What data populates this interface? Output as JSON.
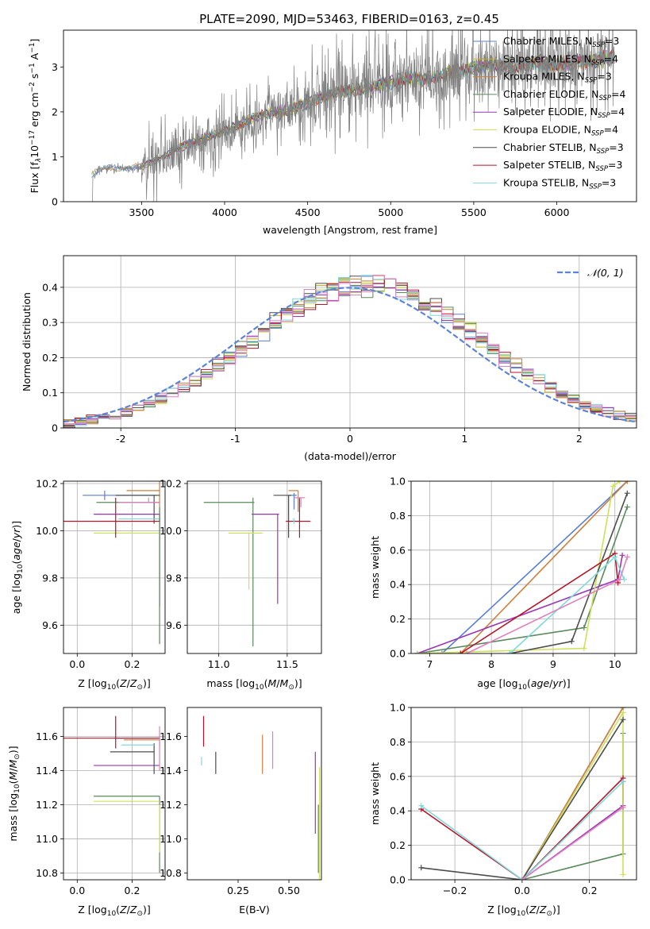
{
  "figure": {
    "title": "PLATE=2090, MJD=53463, FIBERID=0163, z=0.45"
  },
  "colors": {
    "Chabrier MILES": "#5b7fd6",
    "Salpeter MILES": "#c4b12e",
    "Kroupa MILES": "#cf7f3a",
    "Chabrier ELODIE": "#5a8a5a",
    "Salpeter ELODIE": "#9b36b5",
    "Kroupa ELODIE": "#cfe05a",
    "Chabrier STELIB": "#4d4d4d",
    "Salpeter STELIB": "#b5162a",
    "Kroupa STELIB": "#7fd8dc",
    "Kroupa ELODIE extra": "#e07fbf"
  },
  "chart_data": [
    {
      "id": "spectrum",
      "type": "line",
      "title": "PLATE=2090, MJD=53463, FIBERID=0163, z=0.45",
      "xlabel": "wavelength [Angstrom, rest frame]",
      "ylabel": "Flux [f$_\\lambda$10$^{-17}$ erg cm$^{-2}$ s$^{-1}$ A$^{-1}$]",
      "ylabel_parts": [
        "Flux [f",
        "λ",
        "10",
        "−17",
        " erg cm",
        "−2",
        " s",
        "−1",
        " A",
        "−1",
        "]"
      ],
      "xlim": [
        3030,
        6480
      ],
      "ylim": [
        0,
        3.82
      ],
      "x_ticks": [
        3500,
        4000,
        4500,
        5000,
        5500,
        6000
      ],
      "y_ticks": [
        0,
        1,
        2,
        3
      ],
      "grid": false,
      "legend_position": "top-right",
      "legend": [
        {
          "label": "Chabrier MILES, N",
          "sub": "SSP",
          "suffix": "=3",
          "color": "#5b7fd6"
        },
        {
          "label": "Salpeter MILES, N",
          "sub": "SSP",
          "suffix": "=4",
          "color": "#c4b12e"
        },
        {
          "label": "Kroupa MILES, N",
          "sub": "SSP",
          "suffix": "=3",
          "color": "#cf7f3a"
        },
        {
          "label": "Chabrier ELODIE, N",
          "sub": "SSP",
          "suffix": "=4",
          "color": "#5a8a5a"
        },
        {
          "label": "Salpeter ELODIE, N",
          "sub": "SSP",
          "suffix": "=4",
          "color": "#9b36b5"
        },
        {
          "label": "Kroupa ELODIE, N",
          "sub": "SSP",
          "suffix": "=4",
          "color": "#cfe05a"
        },
        {
          "label": "Chabrier STELIB, N",
          "sub": "SSP",
          "suffix": "=3",
          "color": "#4d4d4d"
        },
        {
          "label": "Salpeter STELIB, N",
          "sub": "SSP",
          "suffix": "=3",
          "color": "#b5162a"
        },
        {
          "label": "Kroupa STELIB, N",
          "sub": "SSP",
          "suffix": "=3",
          "color": "#7fd8dc"
        }
      ],
      "data_color": "#808080",
      "continuum": {
        "x": [
          3200,
          3300,
          3400,
          3500,
          3600,
          3700,
          3800,
          3900,
          4000,
          4100,
          4200,
          4300,
          4400,
          4500,
          4600,
          4700,
          4800,
          4900,
          5000,
          5100,
          5200,
          5300,
          5400,
          5500,
          5600,
          5700,
          5800,
          5900,
          6000,
          6100,
          6200,
          6300
        ],
        "y": [
          0.62,
          0.75,
          0.75,
          0.78,
          0.95,
          1.15,
          1.3,
          1.45,
          1.55,
          1.75,
          1.9,
          1.98,
          2.05,
          2.2,
          2.35,
          2.45,
          2.5,
          2.55,
          2.65,
          2.75,
          2.72,
          2.8,
          2.9,
          2.98,
          3.05,
          3.0,
          3.05,
          3.1,
          3.05,
          3.1,
          3.15,
          3.2
        ]
      }
    },
    {
      "id": "residuals",
      "type": "bar",
      "xlabel": "(data-model)/error",
      "ylabel": "Normed distribution",
      "xlim": [
        -2.5,
        2.5
      ],
      "ylim": [
        0,
        0.49
      ],
      "x_ticks": [
        -2,
        -1,
        0,
        1,
        2
      ],
      "y_ticks": [
        0.0,
        0.1,
        0.2,
        0.3,
        0.4
      ],
      "grid": true,
      "legend_position": "top-right",
      "legend": [
        {
          "label": "𝒩(0, 1)",
          "color": "#5b84d6",
          "style": "dashed"
        }
      ],
      "bin_width": 0.1
    },
    {
      "id": "age-vs-Z",
      "type": "scatter",
      "xlabel": "Z [log$_{10}$($Z/Z_\\odot$)]",
      "ylabel": "age  [log$_{10}$($age/yr$)]",
      "xlim": [
        -0.05,
        0.32
      ],
      "ylim": [
        9.48,
        10.21
      ],
      "x_ticks": [
        0.0,
        0.2
      ],
      "y_ticks": [
        9.6,
        9.8,
        10.0,
        10.2
      ],
      "grid": true,
      "points": [
        {
          "x": 0.1,
          "y": 10.15,
          "xerr": [
            0.08,
            0.19
          ],
          "yerr": [
            0.02,
            0.02
          ],
          "color": "#5b7fd6"
        },
        {
          "x": 0.3,
          "y": 10.17,
          "xerr": [
            0.12,
            0.0
          ],
          "yerr": [
            0.14,
            0.04
          ],
          "color": "#cf7f3a"
        },
        {
          "x": 0.2,
          "y": 10.12,
          "xerr": [
            0.13,
            0.1
          ],
          "yerr": [
            0.0,
            0.0
          ],
          "color": "#5a8a5a"
        },
        {
          "x": 0.3,
          "y": 10.07,
          "xerr": [
            0.24,
            0.0
          ],
          "yerr": [
            0.39,
            0.0
          ],
          "color": "#9b36b5"
        },
        {
          "x": 0.3,
          "y": 9.99,
          "xerr": [
            0.24,
            0.0
          ],
          "yerr": [
            0.22,
            0.0
          ],
          "color": "#cfe05a"
        },
        {
          "x": 0.28,
          "y": 10.15,
          "xerr": [
            0.14,
            0.02
          ],
          "yerr": [
            0.12,
            0.0
          ],
          "color": "#4d4d4d"
        },
        {
          "x": 0.14,
          "y": 10.04,
          "xerr": [
            0.19,
            0.16
          ],
          "yerr": [
            0.07,
            0.1
          ],
          "color": "#b5162a"
        },
        {
          "x": 0.29,
          "y": 10.05,
          "xerr": [
            0.14,
            0.01
          ],
          "yerr": [
            0.0,
            0.0
          ],
          "color": "#7fd8dc"
        },
        {
          "x": 0.26,
          "y": 10.12,
          "xerr": [
            0.11,
            0.04
          ],
          "yerr": [
            0.0,
            0.02
          ],
          "color": "#e07fbf"
        },
        {
          "x": 0.3,
          "y": 10.1,
          "xerr": [
            0.0,
            0.0
          ],
          "yerr": [
            0.58,
            0.0
          ],
          "color": "#5a8a5a"
        }
      ]
    },
    {
      "id": "age-vs-mass",
      "type": "scatter",
      "xlabel": "mass [log$_{10}$($M/M_\\odot$)]",
      "xlim": [
        10.77,
        11.75
      ],
      "ylim": [
        9.48,
        10.21
      ],
      "x_ticks": [
        11.0,
        11.5
      ],
      "y_ticks": [
        9.6,
        9.8,
        10.0,
        10.2
      ],
      "grid": true,
      "points": [
        {
          "x": 11.55,
          "y": 10.15,
          "xerr": [
            0.04,
            0.02
          ],
          "yerr": [
            0.06,
            0.01
          ],
          "color": "#5b7fd6"
        },
        {
          "x": 11.58,
          "y": 10.17,
          "xerr": [
            0.07,
            0.0
          ],
          "yerr": [
            0.09,
            0.0
          ],
          "color": "#cf7f3a"
        },
        {
          "x": 11.25,
          "y": 10.12,
          "xerr": [
            0.36,
            0.01
          ],
          "yerr": [
            0.61,
            0.02
          ],
          "color": "#5a8a5a"
        },
        {
          "x": 11.43,
          "y": 10.07,
          "xerr": [
            0.19,
            0.01
          ],
          "yerr": [
            0.38,
            0.0
          ],
          "color": "#9b36b5"
        },
        {
          "x": 11.22,
          "y": 9.99,
          "xerr": [
            0.15,
            0.1
          ],
          "yerr": [
            0.24,
            0.0
          ],
          "color": "#cfe05a"
        },
        {
          "x": 11.51,
          "y": 10.15,
          "xerr": [
            0.11,
            0.02
          ],
          "yerr": [
            0.18,
            0.0
          ],
          "color": "#4d4d4d"
        },
        {
          "x": 11.59,
          "y": 10.04,
          "xerr": [
            0.1,
            0.08
          ],
          "yerr": [
            0.07,
            0.1
          ],
          "color": "#b5162a"
        },
        {
          "x": 11.55,
          "y": 10.05,
          "xerr": [
            0.01,
            0.0
          ],
          "yerr": [
            0.02,
            0.0
          ],
          "color": "#7fd8dc"
        },
        {
          "x": 11.6,
          "y": 10.14,
          "xerr": [
            0.05,
            0.03
          ],
          "yerr": [
            0.04,
            0.0
          ],
          "color": "#e07fbf"
        }
      ]
    },
    {
      "id": "mass-weight-vs-age",
      "type": "line",
      "xlabel": "age  [log$_{10}$($age/yr$)]",
      "ylabel": "mass weight",
      "xlim": [
        6.7,
        10.35
      ],
      "ylim": [
        0,
        1.0
      ],
      "x_ticks": [
        7,
        8,
        9,
        10
      ],
      "y_ticks": [
        0.0,
        0.2,
        0.4,
        0.6,
        0.8,
        1.0
      ],
      "grid": true,
      "series": [
        {
          "color": "#5b7fd6",
          "x": [
            7.2,
            10.2
          ],
          "y": [
            0.0,
            1.0
          ]
        },
        {
          "color": "#cf7f3a",
          "x": [
            7.5,
            10.2
          ],
          "y": [
            0.0,
            1.0
          ]
        },
        {
          "color": "#5a8a5a",
          "x": [
            6.8,
            9.5,
            10.2
          ],
          "y": [
            0.0,
            0.15,
            0.85
          ]
        },
        {
          "color": "#9b36b5",
          "x": [
            6.8,
            10.05,
            10.12
          ],
          "y": [
            0.0,
            0.43,
            0.57
          ]
        },
        {
          "color": "#cfe05a",
          "x": [
            6.8,
            9.5,
            9.97,
            10.08
          ],
          "y": [
            0.0,
            0.03,
            0.97,
            1.0
          ]
        },
        {
          "color": "#4d4d4d",
          "x": [
            8.3,
            9.3,
            10.2
          ],
          "y": [
            0.0,
            0.07,
            0.93
          ]
        },
        {
          "color": "#b5162a",
          "x": [
            7.5,
            10.0,
            10.05
          ],
          "y": [
            0.0,
            0.58,
            0.41
          ]
        },
        {
          "color": "#7fd8dc",
          "x": [
            8.3,
            10.0,
            10.15
          ],
          "y": [
            0.0,
            0.56,
            0.43
          ]
        },
        {
          "color": "#e07fbf",
          "x": [
            7.6,
            10.08,
            10.2
          ],
          "y": [
            0.0,
            0.43,
            0.56
          ]
        }
      ]
    },
    {
      "id": "mass-vs-Z",
      "type": "scatter",
      "xlabel": "Z [log$_{10}$($Z/Z_\\odot$)]",
      "ylabel": "mass [log$_{10}$($M/M_\\odot$)]",
      "xlim": [
        -0.05,
        0.32
      ],
      "ylim": [
        10.76,
        11.77
      ],
      "x_ticks": [
        0.0,
        0.2
      ],
      "y_ticks": [
        10.8,
        11.0,
        11.2,
        11.4,
        11.6
      ],
      "grid": true,
      "points": [
        {
          "x": 0.2,
          "y": 11.59,
          "xerr": [
            0.06,
            0.1
          ],
          "yerr": [
            0.0,
            0.0
          ],
          "color": "#5b7fd6"
        },
        {
          "x": 0.3,
          "y": 11.58,
          "xerr": [
            0.13,
            0.0
          ],
          "yerr": [
            0.04,
            0.02
          ],
          "color": "#cf7f3a"
        },
        {
          "x": 0.3,
          "y": 11.25,
          "xerr": [
            0.24,
            0.0
          ],
          "yerr": [
            0.45,
            0.0
          ],
          "color": "#5a8a5a"
        },
        {
          "x": 0.3,
          "y": 11.43,
          "xerr": [
            0.24,
            0.0
          ],
          "yerr": [
            0.0,
            0.0
          ],
          "color": "#9b36b5"
        },
        {
          "x": 0.3,
          "y": 11.22,
          "xerr": [
            0.24,
            0.0
          ],
          "yerr": [
            0.0,
            0.0
          ],
          "color": "#cfe05a"
        },
        {
          "x": 0.28,
          "y": 11.51,
          "xerr": [
            0.16,
            0.0
          ],
          "yerr": [
            0.13,
            0.05
          ],
          "color": "#4d4d4d"
        },
        {
          "x": 0.14,
          "y": 11.59,
          "xerr": [
            0.19,
            0.16
          ],
          "yerr": [
            0.06,
            0.13
          ],
          "color": "#b5162a"
        },
        {
          "x": 0.28,
          "y": 11.55,
          "xerr": [
            0.12,
            0.0
          ],
          "yerr": [
            0.0,
            0.0
          ],
          "color": "#7fd8dc"
        },
        {
          "x": 0.3,
          "y": 11.6,
          "xerr": [
            0.0,
            0.0
          ],
          "yerr": [
            0.2,
            0.06
          ],
          "color": "#e07fbf"
        },
        {
          "x": 0.3,
          "y": 11.2,
          "xerr": [
            0.0,
            0.0
          ],
          "yerr": [
            0.28,
            0.0
          ],
          "color": "#cfe05a"
        }
      ]
    },
    {
      "id": "mass-vs-EBV",
      "type": "scatter",
      "xlabel": "E(B-V)",
      "xlim": [
        0.0,
        0.66
      ],
      "ylim": [
        10.76,
        11.77
      ],
      "x_ticks": [
        0.25,
        0.5
      ],
      "x_tick_labels": [
        "0.25",
        "0.50"
      ],
      "y_ticks": [
        10.8,
        11.0,
        11.2,
        11.4,
        11.6
      ],
      "grid": false,
      "points": [
        {
          "x": 0.08,
          "y": 11.59,
          "yerr": [
            0.05,
            0.13
          ],
          "color": "#b5162a"
        },
        {
          "x": 0.07,
          "y": 11.48,
          "yerr": [
            0.05,
            0.0
          ],
          "color": "#7fd8dc"
        },
        {
          "x": 0.14,
          "y": 11.46,
          "yerr": [
            0.08,
            0.05
          ],
          "color": "#4d4d4d"
        },
        {
          "x": 0.37,
          "y": 11.5,
          "yerr": [
            0.12,
            0.11
          ],
          "color": "#cf7f3a"
        },
        {
          "x": 0.42,
          "y": 11.5,
          "yerr": [
            0.09,
            0.13
          ],
          "color": "#e07fbf"
        },
        {
          "x": 0.63,
          "y": 11.22,
          "yerr": [
            0.19,
            0.29
          ],
          "color": "#9b36b5"
        },
        {
          "x": 0.65,
          "y": 11.1,
          "yerr": [
            0.34,
            0.32
          ],
          "color": "#cfe05a"
        },
        {
          "x": 0.645,
          "y": 11.2,
          "yerr": [
            0.4,
            0.0
          ],
          "color": "#5a8a5a"
        }
      ]
    },
    {
      "id": "mass-weight-vs-Z",
      "type": "line",
      "xlabel": "Z [log$_{10}$($Z/Z_\\odot$)]",
      "ylabel": "mass weight",
      "xlim": [
        -0.33,
        0.34
      ],
      "ylim": [
        0,
        1.0
      ],
      "x_ticks": [
        -0.2,
        0.0,
        0.2
      ],
      "x_tick_labels": [
        "−0.2",
        "0.0",
        "0.2"
      ],
      "y_ticks": [
        0.0,
        0.2,
        0.4,
        0.6,
        0.8,
        1.0
      ],
      "grid": true,
      "series": [
        {
          "color": "#5b7fd6",
          "x": [
            0.0,
            0.3
          ],
          "y": [
            0.0,
            1.0
          ]
        },
        {
          "color": "#cf7f3a",
          "x": [
            0.0,
            0.3
          ],
          "y": [
            0.0,
            1.0
          ]
        },
        {
          "color": "#5a8a5a",
          "x": [
            0.0,
            0.3,
            0.3
          ],
          "y": [
            0.0,
            0.15,
            0.85
          ]
        },
        {
          "color": "#9b36b5",
          "x": [
            0.0,
            0.3,
            0.3
          ],
          "y": [
            0.0,
            0.43,
            0.57
          ]
        },
        {
          "color": "#cfe05a",
          "x": [
            0.0,
            0.3,
            0.3
          ],
          "y": [
            0.0,
            0.97,
            0.03
          ]
        },
        {
          "color": "#4d4d4d",
          "x": [
            -0.3,
            0.0,
            0.3
          ],
          "y": [
            0.07,
            0.0,
            0.93
          ]
        },
        {
          "color": "#b5162a",
          "x": [
            -0.3,
            0.0,
            0.3
          ],
          "y": [
            0.41,
            0.0,
            0.59
          ]
        },
        {
          "color": "#7fd8dc",
          "x": [
            -0.3,
            0.0,
            0.3
          ],
          "y": [
            0.43,
            0.0,
            0.57
          ]
        },
        {
          "color": "#e07fbf",
          "x": [
            0.0,
            0.3
          ],
          "y": [
            0.0,
            0.42
          ]
        }
      ]
    }
  ]
}
